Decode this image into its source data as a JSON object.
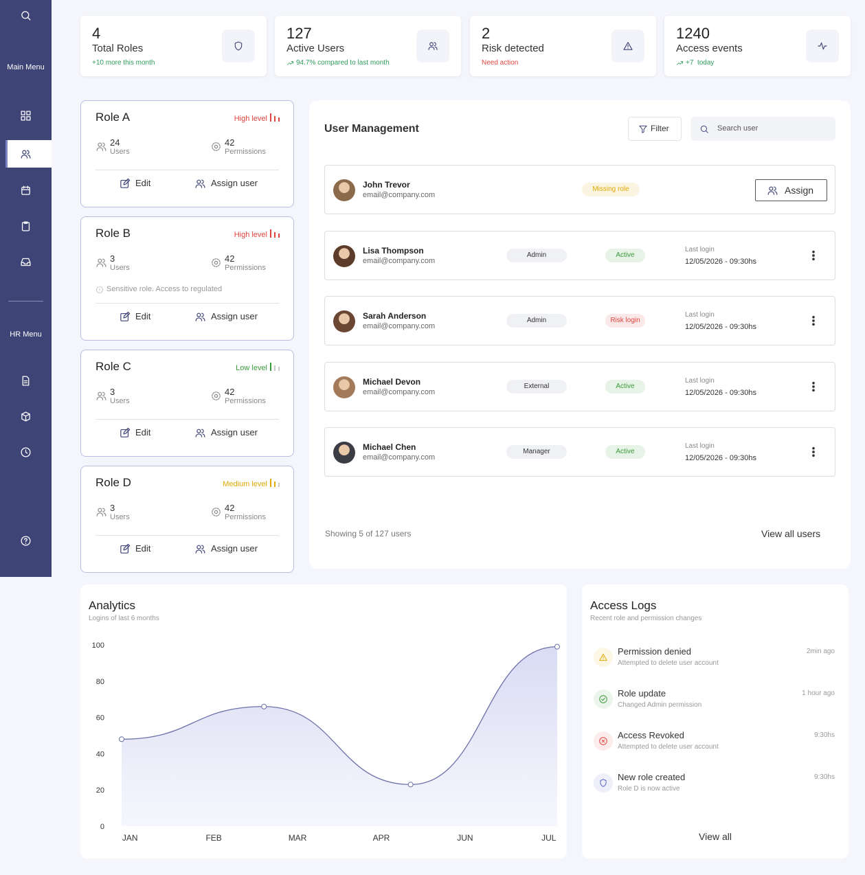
{
  "sidebar": {
    "main_menu": "Main Menu",
    "hr_menu": "HR Menu"
  },
  "stats": [
    {
      "value": 4,
      "label": "Total Roles",
      "note": "+10 more this month",
      "note_color": "#2e9b5a"
    },
    {
      "value": 127,
      "label": "Active Users",
      "note": "94.7% compared to last month",
      "note_color": "#2e9b5a"
    },
    {
      "value": 2,
      "label": "Risk detected",
      "note": "Need action",
      "note_color": "#e0443e"
    },
    {
      "value": 1240,
      "label": "Access events",
      "note": "+7  today",
      "note_color": "#2e9b5a"
    }
  ],
  "roles": [
    {
      "name": "Role A",
      "level": "High level",
      "level_color": "#e0443e",
      "level_bars": 3,
      "users": 24,
      "users_label": "Users",
      "permissions": 42,
      "permissions_label": "Permissions",
      "edit": "Edit",
      "assign": "Assign user"
    },
    {
      "name": "Role B",
      "level": "High level",
      "level_color": "#e0443e",
      "level_bars": 3,
      "users": 3,
      "users_label": "Users",
      "permissions": 42,
      "permissions_label": "Permissions",
      "notice": "Sensitive role. Access to regulated",
      "edit": "Edit",
      "assign": "Assign user"
    },
    {
      "name": "Role C",
      "level": "Low level",
      "level_color": "#3a9a3a",
      "level_bars": 1,
      "users": 3,
      "users_label": "Users",
      "permissions": 42,
      "permissions_label": "Permissions",
      "edit": "Edit",
      "assign": "Assign user"
    },
    {
      "name": "Role D",
      "level": "Medium level",
      "level_color": "#e0a800",
      "level_bars": 2,
      "users": 3,
      "users_label": "Users",
      "permissions": 42,
      "permissions_label": "Permissions",
      "edit": "Edit",
      "assign": "Assign user"
    }
  ],
  "users": {
    "title": "User Management",
    "filter": "Filter",
    "search": "Search user",
    "rows": [
      {
        "name": "John Trevor",
        "email": "email@company.com",
        "status": "Missing role",
        "status_color": "#e0a800",
        "action": "Assign"
      },
      {
        "name": "Lisa Thompson",
        "email": "email@company.com",
        "role": "Admin",
        "status": "Active",
        "status_color": "#3a9a3a",
        "last_login_label": "Last login",
        "last_login": "12/05/2026 - 09:30hs"
      },
      {
        "name": "Sarah Anderson",
        "email": "email@company.com",
        "role": "Admin",
        "status": "Risk login",
        "status_color": "#e0443e",
        "last_login_label": "Last login",
        "last_login": "12/05/2026 - 09:30hs"
      },
      {
        "name": "Michael Devon",
        "email": "email@company.com",
        "role": "External",
        "status": "Active",
        "status_color": "#3a9a3a",
        "last_login_label": "Last login",
        "last_login": "12/05/2026 - 09:30hs"
      },
      {
        "name": "Michael Chen",
        "email": "email@company.com",
        "role": "Manager",
        "status": "Active",
        "status_color": "#3a9a3a",
        "last_login_label": "Last login",
        "last_login": "12/05/2026 - 09:30hs"
      }
    ],
    "footer": "Showing 5 of 127 users",
    "view_all": "View all users"
  },
  "chart_data": {
    "type": "line",
    "title": "Analytics",
    "subtitle": "Logins of last 6 months",
    "x": [
      -0.1,
      1.6,
      3.35,
      5.1
    ],
    "xlim": [
      -0.1,
      5.1
    ],
    "xticks": [
      {
        "value": 0,
        "label": "JAN"
      },
      {
        "value": 1,
        "label": "FEB"
      },
      {
        "value": 2,
        "label": "MAR"
      },
      {
        "value": 3,
        "label": "APR"
      },
      {
        "value": 4,
        "label": "JUN"
      },
      {
        "value": 5,
        "label": "JUL"
      }
    ],
    "series": [
      {
        "color": "#6b70a8",
        "values": [
          48,
          66,
          23,
          99
        ]
      }
    ],
    "ylim": [
      0,
      100
    ],
    "yticks": [
      0,
      20,
      40,
      60,
      80,
      100
    ]
  },
  "access_logs": {
    "title": "Access Logs",
    "subtitle": "Recent role and permission changes",
    "items": [
      {
        "title": "Permission denied",
        "desc": "Attempted to delete user account",
        "time": "2min ago",
        "color": "#e0a800"
      },
      {
        "title": "Role update",
        "desc": "Changed Admin permission",
        "time": "1 hour ago",
        "color": "#3a9a3a"
      },
      {
        "title": "Access Revoked",
        "desc": "Attempted to delete user account",
        "time": "9:30hs",
        "color": "#e0443e"
      },
      {
        "title": "New role created",
        "desc": "Role D is now active",
        "time": "9:30hs",
        "color": "#5a66c8"
      }
    ],
    "view_all": "View all"
  }
}
